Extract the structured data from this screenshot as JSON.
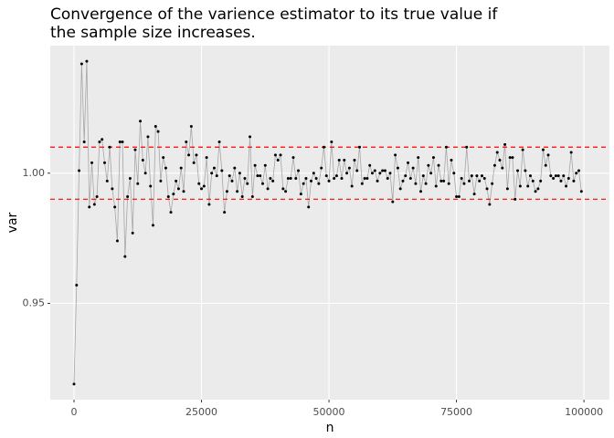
{
  "chart_data": {
    "type": "line",
    "title": [
      "Convergence of the varience estimator to its true value if",
      "the sample size increases."
    ],
    "x_label": "n",
    "y_label": "var",
    "x": [
      0,
      500,
      1000,
      1500,
      2000,
      2500,
      3000,
      3500,
      4000,
      4500,
      5000,
      5500,
      6000,
      6500,
      7000,
      7500,
      8000,
      8500,
      9000,
      9500,
      10000,
      10500,
      11000,
      11500,
      12000,
      12500,
      13000,
      13500,
      14000,
      14500,
      15000,
      15500,
      16000,
      16500,
      17000,
      17500,
      18000,
      18500,
      19000,
      19500,
      20000,
      20500,
      21000,
      21500,
      22000,
      22500,
      23000,
      23500,
      24000,
      24500,
      25000,
      25500,
      26000,
      26500,
      27000,
      27500,
      28000,
      28500,
      29000,
      29500,
      30000,
      30500,
      31000,
      31500,
      32000,
      32500,
      33000,
      33500,
      34000,
      34500,
      35000,
      35500,
      36000,
      36500,
      37000,
      37500,
      38000,
      38500,
      39000,
      39500,
      40000,
      40500,
      41000,
      41500,
      42000,
      42500,
      43000,
      43500,
      44000,
      44500,
      45000,
      45500,
      46000,
      46500,
      47000,
      47500,
      48000,
      48500,
      49000,
      49500,
      50000,
      50500,
      51000,
      51500,
      52000,
      52500,
      53000,
      53500,
      54000,
      54500,
      55000,
      55500,
      56000,
      56500,
      57000,
      57500,
      58000,
      58500,
      59000,
      59500,
      60000,
      60500,
      61000,
      61500,
      62000,
      62500,
      63000,
      63500,
      64000,
      64500,
      65000,
      65500,
      66000,
      66500,
      67000,
      67500,
      68000,
      68500,
      69000,
      69500,
      70000,
      70500,
      71000,
      71500,
      72000,
      72500,
      73000,
      73500,
      74000,
      74500,
      75000,
      75500,
      76000,
      76500,
      77000,
      77500,
      78000,
      78500,
      79000,
      79500,
      80000,
      80500,
      81000,
      81500,
      82000,
      82500,
      83000,
      83500,
      84000,
      84500,
      85000,
      85500,
      86000,
      86500,
      87000,
      87500,
      88000,
      88500,
      89000,
      89500,
      90000,
      90500,
      91000,
      91500,
      92000,
      92500,
      93000,
      93500,
      94000,
      94500,
      95000,
      95500,
      96000,
      96500,
      97000,
      97500,
      98000,
      98500,
      99000,
      99500
    ],
    "series": [
      {
        "line_color": "#a6a6a6",
        "point_color": "#000000",
        "values": [
          0.919,
          0.957,
          1.001,
          1.042,
          1.012,
          1.043,
          0.987,
          1.004,
          0.988,
          0.991,
          1.012,
          1.013,
          1.004,
          0.997,
          1.01,
          0.994,
          0.987,
          0.974,
          1.012,
          1.012,
          0.968,
          0.991,
          0.998,
          0.977,
          1.009,
          0.996,
          1.02,
          1.005,
          1.0,
          1.014,
          0.995,
          0.98,
          1.018,
          1.016,
          0.997,
          1.006,
          1.002,
          0.991,
          0.985,
          0.992,
          0.997,
          0.994,
          1.002,
          0.993,
          1.012,
          1.007,
          1.018,
          1.004,
          1.007,
          0.996,
          0.994,
          0.995,
          1.006,
          0.988,
          1.0,
          1.002,
          0.999,
          1.012,
          1.001,
          0.985,
          0.993,
          0.999,
          0.997,
          1.002,
          0.993,
          1.0,
          0.991,
          0.998,
          0.996,
          1.014,
          0.991,
          1.003,
          0.999,
          0.999,
          0.996,
          1.003,
          0.994,
          0.998,
          0.997,
          1.007,
          1.005,
          1.007,
          0.994,
          0.993,
          0.998,
          0.998,
          1.006,
          0.998,
          1.001,
          0.992,
          0.996,
          0.998,
          0.987,
          0.997,
          1.0,
          0.998,
          0.996,
          1.002,
          1.01,
          0.999,
          0.997,
          1.012,
          0.998,
          0.999,
          1.005,
          0.998,
          1.005,
          1.0,
          1.002,
          0.995,
          1.005,
          1.001,
          1.01,
          0.996,
          0.998,
          0.998,
          1.003,
          1.0,
          1.001,
          0.997,
          1.0,
          1.001,
          1.001,
          0.998,
          1.0,
          0.989,
          1.007,
          1.002,
          0.994,
          0.997,
          0.999,
          1.004,
          0.998,
          1.002,
          0.996,
          1.006,
          0.993,
          0.999,
          0.996,
          1.003,
          1.0,
          1.006,
          0.995,
          1.003,
          0.997,
          0.997,
          1.01,
          0.996,
          1.005,
          1.0,
          0.991,
          0.991,
          0.998,
          0.996,
          1.01,
          0.997,
          0.999,
          0.992,
          0.999,
          0.997,
          0.999,
          0.998,
          0.994,
          0.988,
          0.996,
          1.003,
          1.008,
          1.005,
          1.002,
          1.011,
          0.994,
          1.006,
          1.006,
          0.99,
          1.001,
          0.995,
          1.009,
          1.001,
          0.995,
          0.999,
          0.997,
          0.993,
          0.994,
          0.997,
          1.009,
          1.003,
          1.007,
          0.999,
          0.998,
          0.999,
          0.999,
          0.997,
          0.999,
          0.995,
          0.998,
          1.008,
          0.997,
          1.0,
          1.001,
          0.993
        ]
      }
    ],
    "hlines": [
      0.99,
      1.01
    ],
    "hline_color": "#ff0000",
    "hline_dash": true,
    "xlim": [
      -4660,
      105000
    ],
    "ylim": [
      0.913,
      1.049
    ],
    "xticks": [
      0,
      25000,
      50000,
      75000,
      100000
    ],
    "yticks": [
      0.95,
      {
        "value": 1,
        "label": "1.00"
      }
    ],
    "grid": true,
    "panel_color": "#ebebeb",
    "grid_color": "#ffffff"
  }
}
